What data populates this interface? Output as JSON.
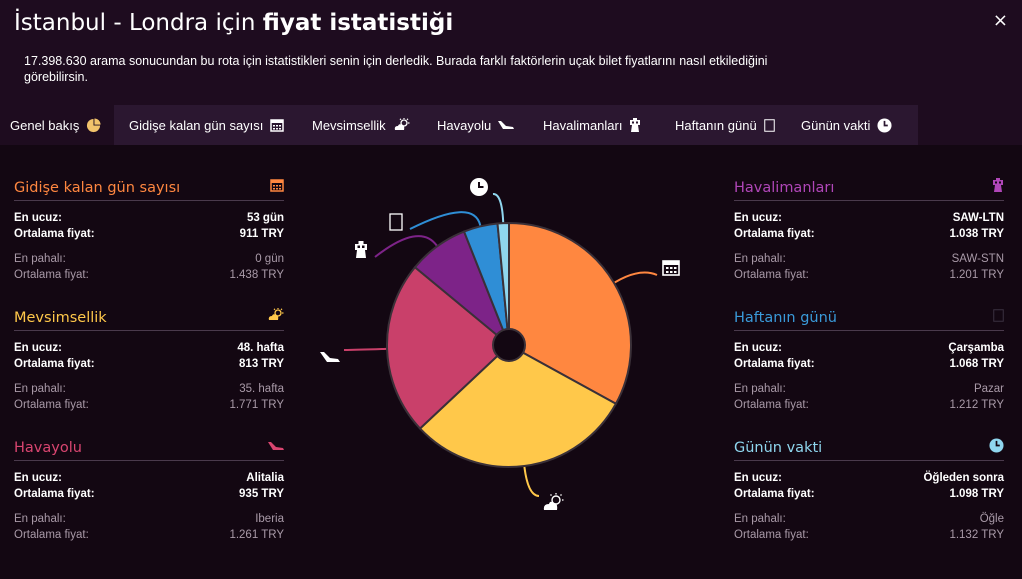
{
  "header": {
    "title_prefix": "İstanbul - Londra için",
    "title_bold": "fiyat istatistiği",
    "subtitle": "17.398.630 arama sonucundan bu rota için istatistikleri senin için derledik. Burada farklı faktörlerin uçak bilet fiyatlarını nasıl etkilediğini görebilirsin.",
    "close_label": "×"
  },
  "tabs": [
    {
      "label": "Genel bakış",
      "icon": "pie-icon"
    },
    {
      "label": "Gidişe kalan gün sayısı",
      "icon": "calendar-icon"
    },
    {
      "label": "Mevsimsellik",
      "icon": "weather-icon"
    },
    {
      "label": "Havayolu",
      "icon": "plane-icon"
    },
    {
      "label": "Havalimanları",
      "icon": "airport-tower-icon"
    },
    {
      "label": "Haftanın günü",
      "icon": "day-icon"
    },
    {
      "label": "Günün vakti",
      "icon": "clock-icon"
    }
  ],
  "labels": {
    "cheapest": "En ucuz:",
    "avg": "Ortalama fiyat:",
    "priciest": "En pahalı:"
  },
  "panels": {
    "days": {
      "title": "Gidişe kalan gün sayısı",
      "color": "#ff8740",
      "cheap": "53 gün",
      "cheap_avg": "911 TRY",
      "pricey": "0 gün",
      "pricey_avg": "1.438 TRY"
    },
    "season": {
      "title": "Mevsimsellik",
      "color": "#ffc84a",
      "cheap": "48. hafta",
      "cheap_avg": "813 TRY",
      "pricey": "35. hafta",
      "pricey_avg": "1.771 TRY"
    },
    "airline": {
      "title": "Havayolu",
      "color": "#d94570",
      "cheap": "Alitalia",
      "cheap_avg": "935 TRY",
      "pricey": "Iberia",
      "pricey_avg": "1.261 TRY"
    },
    "airports": {
      "title": "Havalimanları",
      "color": "#b046b8",
      "cheap": "SAW-LTN",
      "cheap_avg": "1.038 TRY",
      "pricey": "SAW-STN",
      "pricey_avg": "1.201 TRY"
    },
    "weekday": {
      "title": "Haftanın günü",
      "color": "#3a9ad9",
      "cheap": "Çarşamba",
      "cheap_avg": "1.068 TRY",
      "pricey": "Pazar",
      "pricey_avg": "1.212 TRY"
    },
    "timeofday": {
      "title": "Günün vakti",
      "color": "#8fd6ee",
      "cheap": "Öğleden sonra",
      "cheap_avg": "1.098 TRY",
      "pricey": "Öğle",
      "pricey_avg": "1.132 TRY"
    }
  },
  "chart_data": {
    "type": "pie",
    "slices": [
      {
        "key": "days",
        "value": 33,
        "color": "#ff8740",
        "icon": "calendar-icon"
      },
      {
        "key": "season",
        "value": 30,
        "color": "#ffc84a",
        "icon": "weather-icon"
      },
      {
        "key": "airline",
        "value": 23,
        "color": "#c9406a",
        "icon": "plane-icon"
      },
      {
        "key": "airports",
        "value": 8,
        "color": "#7d2388",
        "icon": "airport-tower-icon"
      },
      {
        "key": "weekday",
        "value": 4.5,
        "color": "#2f8ed6",
        "icon": "day-icon"
      },
      {
        "key": "timeofday",
        "value": 1.5,
        "color": "#8fd6ee",
        "icon": "clock-icon"
      }
    ]
  }
}
